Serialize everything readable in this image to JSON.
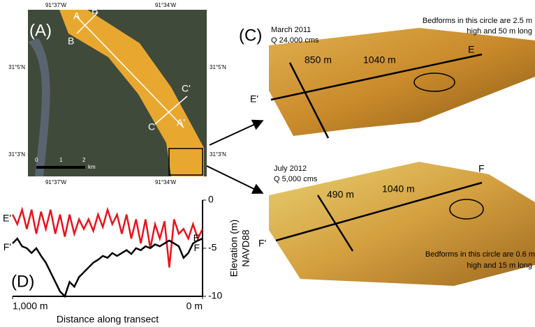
{
  "panel_a": {
    "label": "(A)",
    "coord_top_left": "91°37'W",
    "coord_top_right": "91°34'W",
    "coord_bottom_left": "91°37'W",
    "coord_bottom_right": "91°34'W",
    "coord_left_upper": "31°5'N",
    "coord_right_upper": "31°5'N",
    "coord_left_lower": "31°3'N",
    "coord_right_lower": "31°3'N",
    "point_a": "A",
    "point_b_prime": "B'",
    "point_b": "B",
    "point_c_prime": "C'",
    "point_c": "C",
    "point_a_prime": "A'",
    "scale_0": "0",
    "scale_1": "1",
    "scale_2": "2",
    "scale_unit": "km"
  },
  "panel_c": {
    "label": "(C)",
    "top_date": "March 2011",
    "top_discharge": "Q 24,000 cms",
    "top_dist_1": "850 m",
    "top_dist_2": "1040 m",
    "top_end": "E",
    "top_start": "E'",
    "top_note_line1": "Bedforms in this circle are 2.5 m",
    "top_note_line2": "high and 50 m long",
    "bottom_date": "July 2012",
    "bottom_discharge": "Q 5,000 cms",
    "bottom_dist_1": "490 m",
    "bottom_dist_2": "1040 m",
    "bottom_end": "F",
    "bottom_start": "F'",
    "bottom_note_line1": "Bedforms in this circle are 0.6 m",
    "bottom_note_line2": "high and 15 m long"
  },
  "chart_data": {
    "type": "line",
    "panel_label": "(D)",
    "xlabel": "Distance along transect",
    "ylabel": "Elevation (m)",
    "ylabel_line2": "NAVD88",
    "x": [
      1000,
      975,
      950,
      925,
      900,
      875,
      850,
      825,
      800,
      775,
      750,
      725,
      700,
      675,
      650,
      625,
      600,
      575,
      550,
      525,
      500,
      475,
      450,
      425,
      400,
      375,
      350,
      325,
      300,
      275,
      250,
      225,
      200,
      175,
      150,
      125,
      100,
      75,
      50,
      25,
      0
    ],
    "series": [
      {
        "name": "E'",
        "end_label": "E",
        "color": "#e8141c",
        "values": [
          -1.5,
          -2.5,
          -1,
          -3,
          -1,
          -3.5,
          -1.2,
          -3,
          -1,
          -3.5,
          -1.5,
          -3.8,
          -1.5,
          -3.5,
          -2,
          -3,
          -2,
          -3.2,
          -1.5,
          -2.8,
          -1,
          -2.5,
          -1.5,
          -3.5,
          -1.5,
          -4,
          -2,
          -4.5,
          -2,
          -5,
          -2.5,
          -4,
          -2.2,
          -7,
          -2,
          -3.5,
          -3,
          -4,
          -2.5,
          -4,
          -3
        ]
      },
      {
        "name": "F'",
        "end_label": "F",
        "color": "#000000",
        "values": [
          -4.5,
          -4,
          -4.8,
          -5,
          -5.5,
          -5,
          -5.8,
          -6.5,
          -7.5,
          -8.5,
          -9.5,
          -10,
          -8.5,
          -9,
          -8,
          -7.5,
          -7,
          -6.5,
          -6.2,
          -5.8,
          -6,
          -5.5,
          -5.8,
          -5.5,
          -5.2,
          -5.6,
          -5,
          -5.2,
          -4.8,
          -5,
          -4.6,
          -4.8,
          -4.5,
          -4.2,
          -4.5,
          -4.8,
          -6,
          -5.5,
          -4.5,
          -4.2,
          -4
        ]
      }
    ],
    "xlim": [
      1000,
      0
    ],
    "xticks": [
      {
        "value": 1000,
        "label": "1,000 m"
      },
      {
        "value": 0,
        "label": "0 m"
      }
    ],
    "ylim": [
      -10,
      0
    ],
    "yticks": [
      0,
      -5,
      -10
    ]
  }
}
